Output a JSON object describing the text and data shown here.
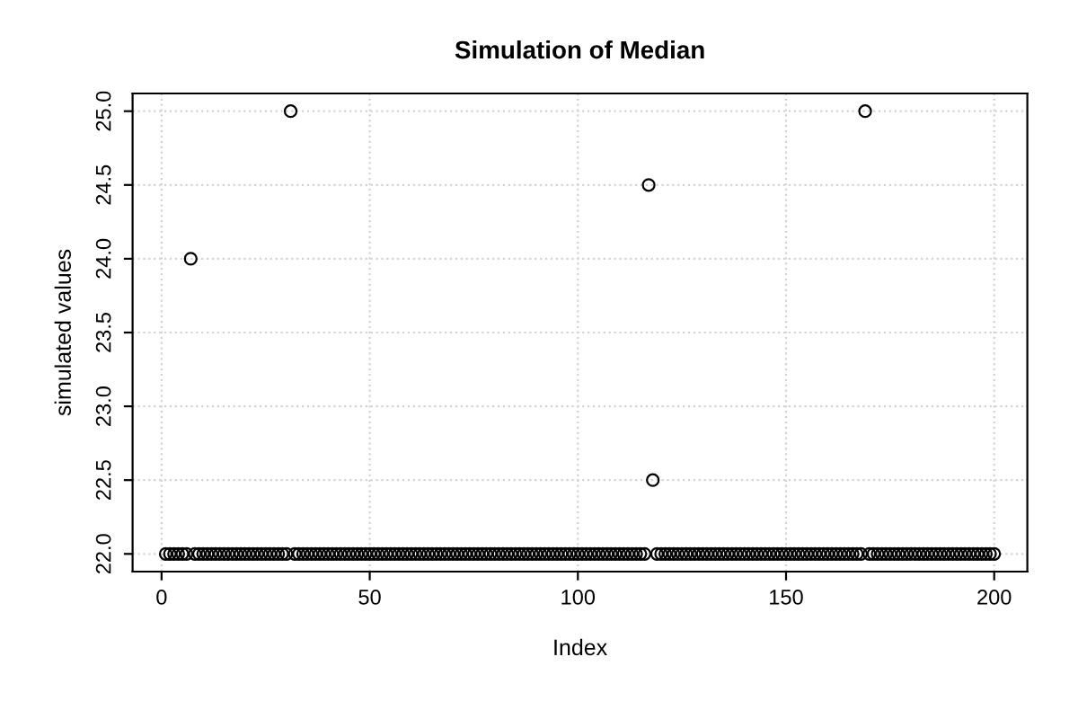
{
  "chart_data": {
    "type": "scatter",
    "title": "Simulation of Median",
    "xlabel": "Index",
    "ylabel": "simulated values",
    "x": [
      1,
      2,
      3,
      4,
      5,
      6,
      7,
      8,
      9,
      10,
      11,
      12,
      13,
      14,
      15,
      16,
      17,
      18,
      19,
      20,
      21,
      22,
      23,
      24,
      25,
      26,
      27,
      28,
      29,
      30,
      31,
      32,
      33,
      34,
      35,
      36,
      37,
      38,
      39,
      40,
      41,
      42,
      43,
      44,
      45,
      46,
      47,
      48,
      49,
      50,
      51,
      52,
      53,
      54,
      55,
      56,
      57,
      58,
      59,
      60,
      61,
      62,
      63,
      64,
      65,
      66,
      67,
      68,
      69,
      70,
      71,
      72,
      73,
      74,
      75,
      76,
      77,
      78,
      79,
      80,
      81,
      82,
      83,
      84,
      85,
      86,
      87,
      88,
      89,
      90,
      91,
      92,
      93,
      94,
      95,
      96,
      97,
      98,
      99,
      100,
      101,
      102,
      103,
      104,
      105,
      106,
      107,
      108,
      109,
      110,
      111,
      112,
      113,
      114,
      115,
      116,
      117,
      118,
      119,
      120,
      121,
      122,
      123,
      124,
      125,
      126,
      127,
      128,
      129,
      130,
      131,
      132,
      133,
      134,
      135,
      136,
      137,
      138,
      139,
      140,
      141,
      142,
      143,
      144,
      145,
      146,
      147,
      148,
      149,
      150,
      151,
      152,
      153,
      154,
      155,
      156,
      157,
      158,
      159,
      160,
      161,
      162,
      163,
      164,
      165,
      166,
      167,
      168,
      169,
      170,
      171,
      172,
      173,
      174,
      175,
      176,
      177,
      178,
      179,
      180,
      181,
      182,
      183,
      184,
      185,
      186,
      187,
      188,
      189,
      190,
      191,
      192,
      193,
      194,
      195,
      196,
      197,
      198,
      199,
      200
    ],
    "values": [
      22,
      22,
      22,
      22,
      22,
      22,
      24,
      22,
      22,
      22,
      22,
      22,
      22,
      22,
      22,
      22,
      22,
      22,
      22,
      22,
      22,
      22,
      22,
      22,
      22,
      22,
      22,
      22,
      22,
      22,
      25,
      22,
      22,
      22,
      22,
      22,
      22,
      22,
      22,
      22,
      22,
      22,
      22,
      22,
      22,
      22,
      22,
      22,
      22,
      22,
      22,
      22,
      22,
      22,
      22,
      22,
      22,
      22,
      22,
      22,
      22,
      22,
      22,
      22,
      22,
      22,
      22,
      22,
      22,
      22,
      22,
      22,
      22,
      22,
      22,
      22,
      22,
      22,
      22,
      22,
      22,
      22,
      22,
      22,
      22,
      22,
      22,
      22,
      22,
      22,
      22,
      22,
      22,
      22,
      22,
      22,
      22,
      22,
      22,
      22,
      22,
      22,
      22,
      22,
      22,
      22,
      22,
      22,
      22,
      22,
      22,
      22,
      22,
      22,
      22,
      22,
      24.5,
      22.5,
      22,
      22,
      22,
      22,
      22,
      22,
      22,
      22,
      22,
      22,
      22,
      22,
      22,
      22,
      22,
      22,
      22,
      22,
      22,
      22,
      22,
      22,
      22,
      22,
      22,
      22,
      22,
      22,
      22,
      22,
      22,
      22,
      22,
      22,
      22,
      22,
      22,
      22,
      22,
      22,
      22,
      22,
      22,
      22,
      22,
      22,
      22,
      22,
      22,
      22,
      25,
      22,
      22,
      22,
      22,
      22,
      22,
      22,
      22,
      22,
      22,
      22,
      22,
      22,
      22,
      22,
      22,
      22,
      22,
      22,
      22,
      22,
      22,
      22,
      22,
      22,
      22,
      22,
      22,
      22,
      22,
      22
    ],
    "color": "#000000",
    "marker": "circle",
    "xlim": [
      -6.96,
      207.96
    ],
    "ylim": [
      21.88,
      25.12
    ],
    "xticks": [
      0,
      50,
      100,
      150,
      200
    ],
    "yticks": [
      {
        "value": 22,
        "label": "22.0"
      },
      {
        "value": 22.5,
        "label": "22.5"
      },
      {
        "value": 23,
        "label": "23.0"
      },
      {
        "value": 23.5,
        "label": "23.5"
      },
      {
        "value": 24,
        "label": "24.0"
      },
      {
        "value": 24.5,
        "label": "24.5"
      },
      {
        "value": 25,
        "label": "25.0"
      }
    ],
    "grid": true
  }
}
